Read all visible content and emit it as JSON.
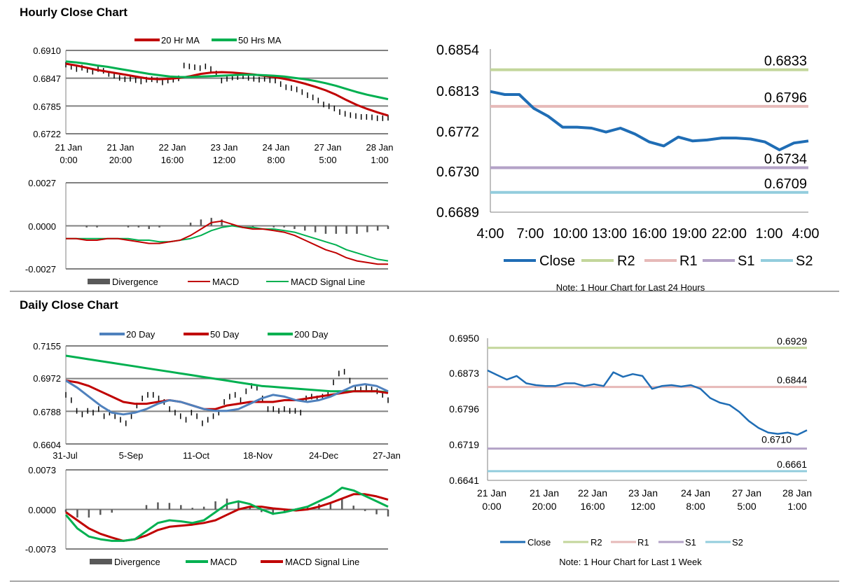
{
  "sections": {
    "hourly_title": "Hourly Close Chart",
    "daily_title": "Daily Close Chart"
  },
  "colors": {
    "ma20": "#c00000",
    "ma50": "#00b050",
    "close_blue": "#1f6db5",
    "r2": "#c3d69b",
    "r1": "#e6b9b8",
    "s1": "#b3a2c7",
    "s2": "#93cddd",
    "day20": "#4f81bd",
    "grid": "#808080",
    "divergence": "#595959"
  },
  "chart_data": [
    {
      "id": "hourly_price",
      "type": "line",
      "title": "",
      "ylim": [
        0.6722,
        0.691
      ],
      "yticks": [
        "0.6910",
        "0.6847",
        "0.6785",
        "0.6722"
      ],
      "xticks": [
        [
          "21 Jan",
          "0:00"
        ],
        [
          "21 Jan",
          "20:00"
        ],
        [
          "22 Jan",
          "16:00"
        ],
        [
          "23 Jan",
          "12:00"
        ],
        [
          "24 Jan",
          "8:00"
        ],
        [
          "27 Jan",
          "5:00"
        ],
        [
          "28 Jan",
          "1:00"
        ]
      ],
      "legend": [
        "20 Hr MA",
        "50 Hrs MA"
      ],
      "series": [
        {
          "name": "Close",
          "style": "ohlc-bars",
          "values": [
            0.6878,
            0.6873,
            0.6868,
            0.6871,
            0.6866,
            0.6862,
            0.6868,
            0.6864,
            0.6857,
            0.6853,
            0.6848,
            0.6845,
            0.6846,
            0.6843,
            0.684,
            0.6844,
            0.6845,
            0.6843,
            0.6838,
            0.6842,
            0.6844,
            0.6847,
            0.6876,
            0.6874,
            0.6872,
            0.687,
            0.6874,
            0.6868,
            0.6858,
            0.6842,
            0.6846,
            0.6849,
            0.685,
            0.6852,
            0.6848,
            0.6846,
            0.6844,
            0.6846,
            0.6843,
            0.6842,
            0.6834,
            0.6827,
            0.6825,
            0.6822,
            0.6816,
            0.6809,
            0.6804,
            0.6797,
            0.6788,
            0.6784,
            0.6779,
            0.6771,
            0.6767,
            0.6764,
            0.6762,
            0.676,
            0.676,
            0.6759,
            0.6757,
            0.6757,
            0.6758
          ]
        },
        {
          "name": "20 Hr MA",
          "values": [
            0.688,
            0.6876,
            0.6871,
            0.6866,
            0.6862,
            0.6858,
            0.6854,
            0.685,
            0.6846,
            0.6845,
            0.6846,
            0.6848,
            0.6852,
            0.6857,
            0.686,
            0.6861,
            0.686,
            0.6858,
            0.6856,
            0.6853,
            0.685,
            0.6846,
            0.6841,
            0.6835,
            0.6828,
            0.682,
            0.681,
            0.6798,
            0.6787,
            0.6778,
            0.677,
            0.6763
          ]
        },
        {
          "name": "50 Hrs MA",
          "values": [
            0.6885,
            0.6883,
            0.688,
            0.6876,
            0.6873,
            0.6869,
            0.6865,
            0.6861,
            0.6857,
            0.6854,
            0.6851,
            0.685,
            0.685,
            0.6851,
            0.6852,
            0.6853,
            0.6854,
            0.6855,
            0.6855,
            0.6854,
            0.6853,
            0.6851,
            0.6848,
            0.6845,
            0.6841,
            0.6836,
            0.683,
            0.6823,
            0.6816,
            0.681,
            0.6805,
            0.68
          ]
        }
      ]
    },
    {
      "id": "hourly_macd",
      "type": "line",
      "ylim": [
        -0.0027,
        0.0027
      ],
      "yticks": [
        "0.0027",
        "0.0000",
        "-0.0027"
      ],
      "legend": [
        "Divergence",
        "MACD",
        "MACD Signal Line"
      ],
      "series": [
        {
          "name": "MACD",
          "values": [
            -0.0008,
            -0.0008,
            -0.0009,
            -0.0009,
            -0.0008,
            -0.0008,
            -0.0009,
            -0.001,
            -0.0011,
            -0.0011,
            -0.001,
            -0.0009,
            -0.0006,
            -0.0002,
            0.0002,
            0.0003,
            0.0001,
            -0.0001,
            -0.0002,
            -0.0002,
            -0.0003,
            -0.0004,
            -0.0006,
            -0.0009,
            -0.0012,
            -0.0015,
            -0.0017,
            -0.002,
            -0.0022,
            -0.0023,
            -0.0024,
            -0.0024
          ]
        },
        {
          "name": "MACD Signal Line",
          "values": [
            -0.0008,
            -0.0008,
            -0.0008,
            -0.0008,
            -0.0008,
            -0.0008,
            -0.0008,
            -0.0009,
            -0.0009,
            -0.001,
            -0.001,
            -0.0009,
            -0.0008,
            -0.0006,
            -0.0003,
            -0.0001,
            0.0,
            -0.0001,
            -0.0001,
            -0.0002,
            -0.0002,
            -0.0003,
            -0.0004,
            -0.0006,
            -0.0008,
            -0.001,
            -0.0012,
            -0.0015,
            -0.0017,
            -0.0019,
            -0.0021,
            -0.0022
          ]
        },
        {
          "name": "Divergence",
          "values": [
            0,
            0,
            -0.0001,
            -0.0001,
            0,
            0,
            -0.0001,
            -0.0001,
            -0.0002,
            -0.0001,
            0,
            0,
            0.0002,
            0.0004,
            0.0005,
            0.0004,
            0.0001,
            0,
            -0.0001,
            0,
            -0.0001,
            -0.0001,
            -0.0002,
            -0.0003,
            -0.0004,
            -0.0005,
            -0.0005,
            -0.0005,
            -0.0005,
            -0.0004,
            -0.0003,
            -0.0002
          ]
        }
      ]
    },
    {
      "id": "hourly_24h",
      "type": "line",
      "ylim": [
        0.6689,
        0.6854
      ],
      "yticks": [
        "0.6854",
        "0.6813",
        "0.6772",
        "0.6730",
        "0.6689"
      ],
      "xticks": [
        "4:00",
        "7:00",
        "10:00",
        "13:00",
        "16:00",
        "19:00",
        "22:00",
        "1:00",
        "4:00"
      ],
      "levels": [
        {
          "name": "R2",
          "value": 0.6833,
          "label": "0.6833"
        },
        {
          "name": "R1",
          "value": 0.6796,
          "label": "0.6796"
        },
        {
          "name": "S1",
          "value": 0.6734,
          "label": "0.6734"
        },
        {
          "name": "S2",
          "value": 0.6709,
          "label": "0.6709"
        }
      ],
      "legend": [
        "Close",
        "R2",
        "R1",
        "S1",
        "S2"
      ],
      "series": [
        {
          "name": "Close",
          "values": [
            0.6811,
            0.6808,
            0.6808,
            0.6794,
            0.6786,
            0.6775,
            0.6775,
            0.6774,
            0.677,
            0.6774,
            0.6768,
            0.676,
            0.6756,
            0.6765,
            0.6761,
            0.6762,
            0.6764,
            0.6764,
            0.6763,
            0.676,
            0.6752,
            0.6759,
            0.6761
          ]
        }
      ],
      "note": "Note: 1 Hour Chart for Last 24 Hours"
    },
    {
      "id": "daily_price",
      "type": "line",
      "ylim": [
        0.6604,
        0.7155
      ],
      "yticks": [
        "0.7155",
        "0.6972",
        "0.6788",
        "0.6604"
      ],
      "xticks": [
        "31-Jul",
        "5-Sep",
        "11-Oct",
        "18-Nov",
        "24-Dec",
        "27-Jan"
      ],
      "legend": [
        "20 Day",
        "50 Day",
        "200 Day"
      ],
      "series": [
        {
          "name": "Close",
          "style": "ohlc-bars",
          "values": [
            0.688,
            0.685,
            0.679,
            0.677,
            0.679,
            0.678,
            0.68,
            0.676,
            0.678,
            0.676,
            0.674,
            0.672,
            0.676,
            0.682,
            0.686,
            0.688,
            0.688,
            0.686,
            0.684,
            0.68,
            0.678,
            0.676,
            0.674,
            0.678,
            0.676,
            0.672,
            0.674,
            0.676,
            0.678,
            0.684,
            0.687,
            0.688,
            0.685,
            0.69,
            0.693,
            0.692,
            0.686,
            0.68,
            0.68,
            0.679,
            0.68,
            0.679,
            0.679,
            0.678,
            0.686,
            0.687,
            0.686,
            0.687,
            0.688,
            0.695,
            0.7,
            0.701,
            0.696,
            0.692,
            0.691,
            0.692,
            0.691,
            0.69,
            0.688,
            0.685
          ]
        },
        {
          "name": "20 Day",
          "values": [
            0.696,
            0.692,
            0.687,
            0.682,
            0.678,
            0.677,
            0.678,
            0.68,
            0.683,
            0.685,
            0.684,
            0.682,
            0.68,
            0.679,
            0.679,
            0.68,
            0.683,
            0.686,
            0.688,
            0.687,
            0.685,
            0.684,
            0.685,
            0.687,
            0.69,
            0.693,
            0.694,
            0.693,
            0.69
          ]
        },
        {
          "name": "50 Day",
          "values": [
            0.696,
            0.695,
            0.693,
            0.69,
            0.687,
            0.684,
            0.683,
            0.683,
            0.684,
            0.685,
            0.684,
            0.682,
            0.68,
            0.68,
            0.682,
            0.683,
            0.684,
            0.684,
            0.684,
            0.685,
            0.685,
            0.686,
            0.687,
            0.688,
            0.689,
            0.69,
            0.69,
            0.69,
            0.689
          ]
        },
        {
          "name": "200 Day",
          "values": [
            0.71,
            0.709,
            0.708,
            0.707,
            0.706,
            0.705,
            0.704,
            0.703,
            0.702,
            0.701,
            0.7,
            0.699,
            0.698,
            0.697,
            0.696,
            0.695,
            0.694,
            0.693,
            0.6925,
            0.692,
            0.6915,
            0.691,
            0.6905,
            0.69,
            0.69,
            0.69,
            0.69,
            0.69,
            0.6895
          ]
        }
      ]
    },
    {
      "id": "daily_macd",
      "type": "line",
      "ylim": [
        -0.0073,
        0.0073
      ],
      "yticks": [
        "0.0073",
        "0.0000",
        "-0.0073"
      ],
      "legend": [
        "Divergence",
        "MACD",
        "MACD Signal Line"
      ],
      "series": [
        {
          "name": "MACD",
          "values": [
            -0.001,
            -0.0035,
            -0.005,
            -0.0055,
            -0.0058,
            -0.0058,
            -0.0055,
            -0.004,
            -0.0025,
            -0.002,
            -0.0022,
            -0.0025,
            -0.002,
            -0.0005,
            0.001,
            0.0015,
            0.001,
            0.0,
            -0.0008,
            -0.0005,
            0.0,
            0.0005,
            0.0015,
            0.0025,
            0.004,
            0.0035,
            0.0025,
            0.0015,
            0.0005
          ]
        },
        {
          "name": "MACD Signal Line",
          "values": [
            -0.0005,
            -0.002,
            -0.0035,
            -0.0045,
            -0.0052,
            -0.0058,
            -0.0055,
            -0.0048,
            -0.0038,
            -0.0032,
            -0.003,
            -0.0028,
            -0.0025,
            -0.002,
            -0.001,
            0.0,
            0.0005,
            0.0005,
            0.0002,
            0.0,
            -0.0002,
            0.0,
            0.0005,
            0.0012,
            0.002,
            0.0028,
            0.0028,
            0.0024,
            0.0018
          ]
        },
        {
          "name": "Divergence",
          "values": [
            -0.0005,
            -0.0015,
            -0.0015,
            -0.001,
            -0.0006,
            0.0,
            0.0,
            0.0008,
            0.0013,
            0.0012,
            0.0008,
            0.0003,
            0.0005,
            0.0015,
            0.002,
            0.0015,
            0.0005,
            -0.0005,
            -0.001,
            -0.0005,
            0.0002,
            0.0005,
            0.001,
            0.0013,
            0.002,
            0.0007,
            -0.0003,
            -0.0009,
            -0.0013
          ]
        }
      ]
    },
    {
      "id": "weekly_hourly",
      "type": "line",
      "ylim": [
        0.6641,
        0.695
      ],
      "yticks": [
        "0.6950",
        "0.6873",
        "0.6796",
        "0.6719",
        "0.6641"
      ],
      "xticks": [
        [
          "21 Jan",
          "0:00"
        ],
        [
          "21 Jan",
          "20:00"
        ],
        [
          "22 Jan",
          "16:00"
        ],
        [
          "23 Jan",
          "12:00"
        ],
        [
          "24 Jan",
          "8:00"
        ],
        [
          "27 Jan",
          "5:00"
        ],
        [
          "28 Jan",
          "1:00"
        ]
      ],
      "levels": [
        {
          "name": "R2",
          "value": 0.6929,
          "label": "0.6929"
        },
        {
          "name": "R1",
          "value": 0.6844,
          "label": "0.6844"
        },
        {
          "name": "S1",
          "value": 0.671,
          "label": "0.6710"
        },
        {
          "name": "S2",
          "value": 0.6661,
          "label": "0.6661"
        }
      ],
      "legend": [
        "Close",
        "R2",
        "R1",
        "S1",
        "S2"
      ],
      "series": [
        {
          "name": "Close",
          "values": [
            0.688,
            0.687,
            0.686,
            0.6868,
            0.6852,
            0.6848,
            0.6846,
            0.6846,
            0.6852,
            0.6852,
            0.6846,
            0.685,
            0.6846,
            0.6876,
            0.6866,
            0.6872,
            0.6868,
            0.684,
            0.6846,
            0.6848,
            0.6845,
            0.6848,
            0.684,
            0.682,
            0.681,
            0.6805,
            0.679,
            0.677,
            0.6755,
            0.6745,
            0.6742,
            0.6745,
            0.674,
            0.675
          ]
        }
      ],
      "note": "Note: 1 Hour Chart for Last 1 Week"
    }
  ]
}
